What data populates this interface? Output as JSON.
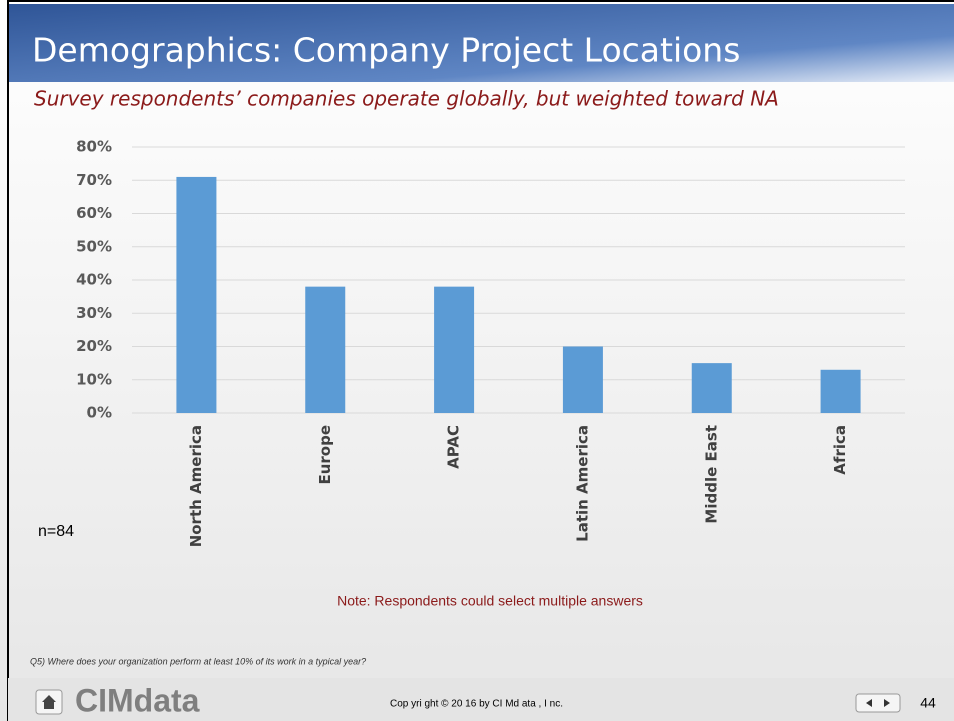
{
  "chart_data": {
    "type": "bar",
    "title": "Demographics: Company Project Locations",
    "subtitle": "Survey respondents’ companies operate globally,  but weighted toward NA",
    "categories": [
      "North America",
      "Europe",
      "APAC",
      "Latin America",
      "Middle East",
      "Africa"
    ],
    "values": [
      71,
      38,
      38,
      20,
      15,
      13
    ],
    "color": "#5b9bd5",
    "ylim": [
      0,
      80
    ],
    "yticks": [
      {
        "value": 0,
        "label": "0%"
      },
      {
        "value": 10,
        "label": "10%"
      },
      {
        "value": 20,
        "label": "20%"
      },
      {
        "value": 30,
        "label": "30%"
      },
      {
        "value": 40,
        "label": "40%"
      },
      {
        "value": 50,
        "label": "50%"
      },
      {
        "value": 60,
        "label": "60%"
      },
      {
        "value": 70,
        "label": "70%"
      },
      {
        "value": 80,
        "label": "80%"
      }
    ],
    "grid": true,
    "sample": "n=84",
    "note": "Note: Respondents  could select multiple answers"
  },
  "footer": {
    "question": "Q5) Where does your organization  perform  at least  10% of its work in a typical year?",
    "logo": "CIMdata",
    "copyright": "Cop yri ght  ©  20 16  by  CI Md ata , I nc.",
    "page": "44"
  }
}
